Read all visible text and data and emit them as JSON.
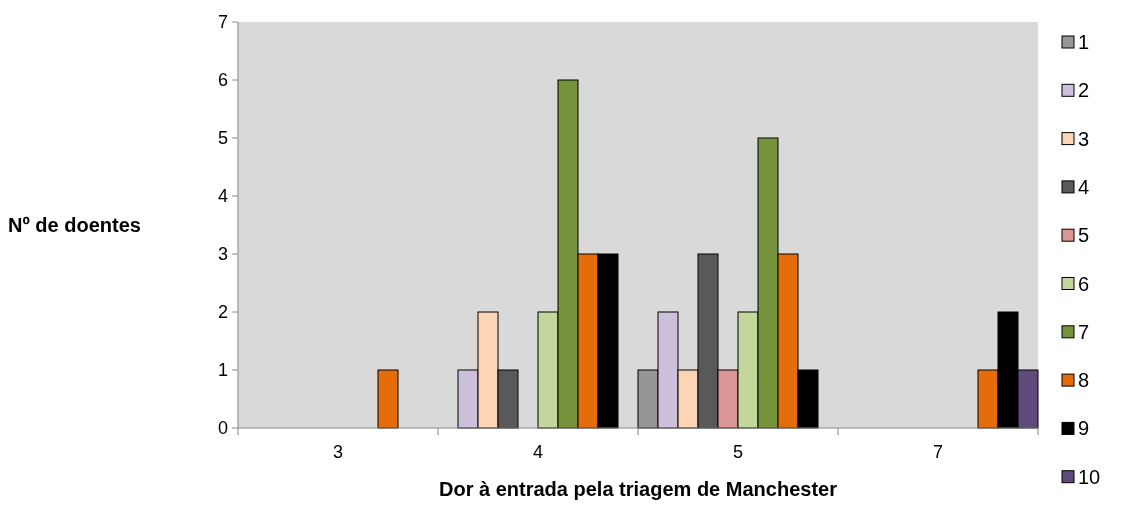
{
  "chart_data": {
    "type": "bar",
    "xlabel": "Dor à entrada pela triagem de Manchester",
    "ylabel": "Nº de doentes",
    "categories": [
      "3",
      "4",
      "5",
      "7"
    ],
    "ylim": [
      0,
      7
    ],
    "yticks": [
      0,
      1,
      2,
      3,
      4,
      5,
      6,
      7
    ],
    "grid": false,
    "legend": "right",
    "series": [
      {
        "name": "1",
        "color": "#969696",
        "values": [
          null,
          null,
          1,
          null
        ]
      },
      {
        "name": "2",
        "color": "#ccc0da",
        "values": [
          null,
          1,
          2,
          null
        ]
      },
      {
        "name": "3",
        "color": "#fcd5b5",
        "values": [
          null,
          2,
          1,
          null
        ]
      },
      {
        "name": "4",
        "color": "#595959",
        "values": [
          null,
          1,
          3,
          null
        ]
      },
      {
        "name": "5",
        "color": "#d99694",
        "values": [
          null,
          null,
          1,
          null
        ]
      },
      {
        "name": "6",
        "color": "#c3d69b",
        "values": [
          null,
          2,
          2,
          null
        ]
      },
      {
        "name": "7",
        "color": "#77933c",
        "values": [
          null,
          6,
          5,
          null
        ]
      },
      {
        "name": "8",
        "color": "#e46c0a",
        "values": [
          1,
          3,
          3,
          1
        ]
      },
      {
        "name": "9",
        "color": "#000000",
        "values": [
          null,
          3,
          1,
          2
        ]
      },
      {
        "name": "10",
        "color": "#604a7b",
        "values": [
          null,
          null,
          null,
          1
        ]
      }
    ]
  }
}
